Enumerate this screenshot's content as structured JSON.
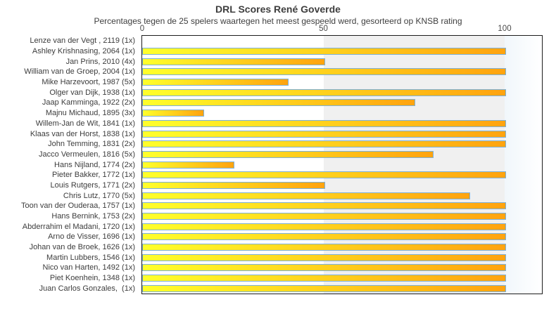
{
  "chart_data": {
    "type": "bar",
    "orientation": "horizontal",
    "title": "DRL Scores René Goverde",
    "subtitle": "Percentages tegen de 25 spelers waartegen het meest gespeeld werd, gesorteerd op KNSB rating",
    "xlabel": "",
    "ylabel": "",
    "xlim": [
      0,
      110
    ],
    "xticks": [
      0,
      50,
      100
    ],
    "grid": "off",
    "legend": "none",
    "shaded_band": {
      "from": 50,
      "to": 100
    },
    "categories": [
      "Lenze van der Vegt , 2119 (1x)",
      "Ashley Krishnasing, 2064 (1x)",
      "Jan Prins, 2010 (4x)",
      "William van de Groep, 2004 (1x)",
      "Mike Harzevoort, 1987 (5x)",
      "Olger van Dijk, 1938 (1x)",
      "Jaap Kamminga, 1922 (2x)",
      "Majnu Michaud, 1895 (3x)",
      "Willem-Jan de Wit, 1841 (1x)",
      "Klaas van der Horst, 1838 (1x)",
      "John Temming, 1831 (2x)",
      "Jacco Vermeulen, 1816 (5x)",
      "Hans Nijland, 1774 (2x)",
      "Pieter Bakker, 1772 (1x)",
      "Louis Rutgers, 1771 (2x)",
      "Chris Lutz, 1770 (5x)",
      "Toon van der Ouderaa, 1757 (1x)",
      "Hans Bernink, 1753 (2x)",
      "Abderrahim el Madani, 1720 (1x)",
      "Arno de Visser, 1696 (1x)",
      "Johan van de Broek, 1626 (1x)",
      "Martin Lubbers, 1546 (1x)",
      "Nico van Harten, 1492 (1x)",
      "Piet Koenhein, 1348 (1x)",
      "Juan Carlos Gonzales,  (1x)"
    ],
    "values": [
      0,
      100,
      50,
      100,
      40,
      100,
      75,
      16.7,
      100,
      100,
      100,
      80,
      25,
      100,
      50,
      90,
      100,
      100,
      100,
      100,
      100,
      100,
      100,
      100,
      100
    ],
    "colors": {
      "bar_gradient_start": "#ffff2b",
      "bar_gradient_end": "#ffa30f",
      "bar_border": "#7cb0d8",
      "band_color": "#f0f0f0",
      "overband_color": "#f1f7fb",
      "plot_border": "#1c1c1c",
      "text": "#3c3c3c"
    }
  }
}
